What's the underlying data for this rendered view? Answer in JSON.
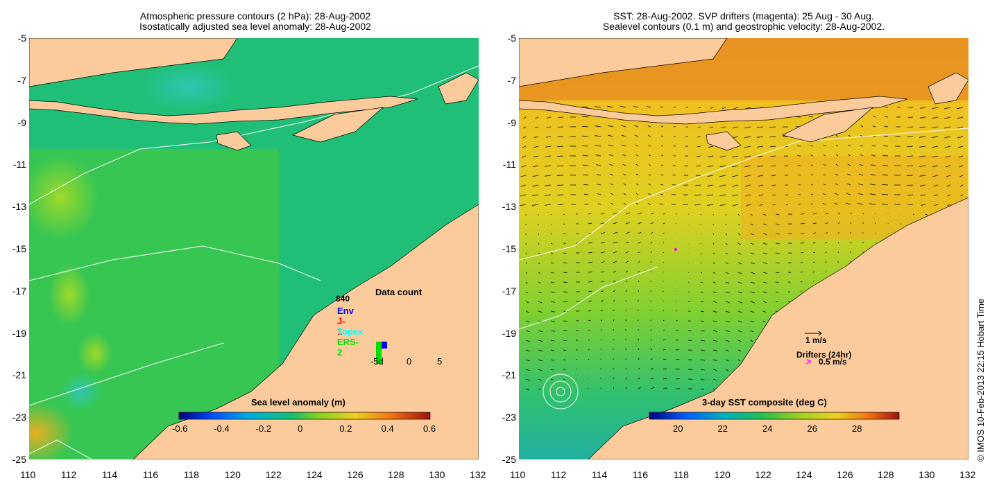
{
  "left_panel": {
    "title_line1": "Atmospheric pressure contours (2 hPa): 28-Aug-2002",
    "title_line2": "Isostatically adjusted sea level anomaly: 28-Aug-2002",
    "colorbar_label": "Sea level anomaly (m)",
    "colorbar_ticks": [
      "-0.6",
      "-0.4",
      "-0.2",
      "0",
      "0.2",
      "0.4",
      "0.6"
    ],
    "data_count": {
      "title": "Data count",
      "total": "840",
      "legend": [
        {
          "label": "Env",
          "color": "#0000ff"
        },
        {
          "label": "J-1",
          "color": "#ff0000"
        },
        {
          "label": "Topex",
          "color": "#00ffff"
        },
        {
          "label": "ERS-2",
          "color": "#00e000"
        }
      ],
      "x_ticks": [
        "-5d",
        "0",
        "5"
      ]
    }
  },
  "right_panel": {
    "title_line1": "SST: 28-Aug-2002. SVP drifters (magenta): 25 Aug - 30 Aug.",
    "title_line2": "Sealevel contours (0.1 m) and geostrophic velocity: 28-Aug-2002.",
    "colorbar_label": "3-day SST composite (deg C)",
    "colorbar_ticks": [
      "20",
      "22",
      "24",
      "26",
      "28"
    ],
    "velocity_legend": "1 m/s",
    "drifters_legend_title": "Drifters (24hr)",
    "drifters_legend_value": "0.5 m/s",
    "drifters_symbol": ">"
  },
  "axes": {
    "lat_labels": [
      "-5",
      "-7",
      "-9",
      "-11",
      "-13",
      "-15",
      "-17",
      "-19",
      "-21",
      "-23",
      "-25"
    ],
    "lon_labels": [
      "110",
      "112",
      "114",
      "116",
      "118",
      "120",
      "122",
      "124",
      "126",
      "128",
      "130",
      "132"
    ]
  },
  "credit": "© IMOS 10-Feb-2013 22:15 Hobart Time",
  "colors": {
    "land": "#fbcb9b",
    "sla_ocean": "#1fc47a",
    "sst_ocean": "#f0c020"
  }
}
